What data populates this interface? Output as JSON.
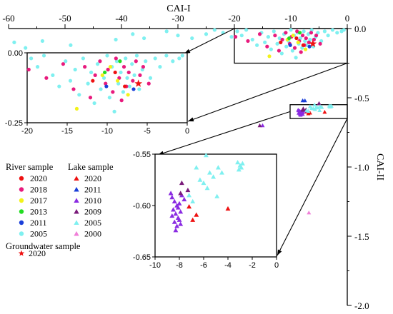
{
  "chart_data": {
    "type": "scatter",
    "main": {
      "xlabel": "CAI-I",
      "ylabel": "CAI-II",
      "xlim": [
        -60,
        0
      ],
      "ylim": [
        -2.0,
        0.0
      ],
      "xticks": [
        "-60",
        "-50",
        "-40",
        "-30",
        "-20",
        "-10",
        "0"
      ],
      "yticks": [
        "0.0",
        "-0.5",
        "-1.0",
        "-1.5",
        "-2.0"
      ]
    },
    "insets": [
      {
        "name": "river-zoom",
        "xlim": [
          -20,
          0
        ],
        "ylim": [
          -0.25,
          0.0
        ],
        "xticks": [
          "-20",
          "-15",
          "-10",
          "-5",
          "0"
        ],
        "yticks": [
          "0.00",
          "-0.25"
        ]
      },
      {
        "name": "lake-zoom",
        "xlim": [
          -10,
          0
        ],
        "ylim": [
          -0.65,
          -0.55
        ],
        "xticks": [
          "-10",
          "-8",
          "-6",
          "-4",
          "-2",
          "0"
        ],
        "yticks": [
          "-0.55",
          "-0.60",
          "-0.65"
        ]
      }
    ],
    "legend": {
      "river_title": "River sample",
      "lake_title": "Lake sample",
      "groundwater_title": "Groundwater sample",
      "river": [
        {
          "label": "2020",
          "color": "#ee1111"
        },
        {
          "label": "2018",
          "color": "#e81a7d"
        },
        {
          "label": "2017",
          "color": "#f2f21a"
        },
        {
          "label": "2013",
          "color": "#22dd22"
        },
        {
          "label": "2011",
          "color": "#1a3fd9"
        },
        {
          "label": "2005",
          "color": "#7ff0f0"
        }
      ],
      "lake": [
        {
          "label": "2020",
          "color": "#ee1111"
        },
        {
          "label": "2011",
          "color": "#1a3fd9"
        },
        {
          "label": "2010",
          "color": "#8a2be2"
        },
        {
          "label": "2009",
          "color": "#7a1a7a"
        },
        {
          "label": "2005",
          "color": "#7ff0f0"
        },
        {
          "label": "2000",
          "color": "#f07fd8"
        }
      ],
      "groundwater": [
        {
          "label": "2020",
          "color": "#ee1111"
        }
      ]
    },
    "series": [
      {
        "group": "river",
        "year": "2005",
        "marker": "circle",
        "color": "#7ff0f0",
        "points": [
          [
            -19.5,
            -0.02
          ],
          [
            -18.7,
            -0.05
          ],
          [
            -17.9,
            -0.01
          ],
          [
            -16.8,
            -0.08
          ],
          [
            -16.0,
            -0.12
          ],
          [
            -15.2,
            -0.03
          ],
          [
            -14.6,
            -0.1
          ],
          [
            -14.0,
            -0.06
          ],
          [
            -13.5,
            -0.15
          ],
          [
            -13.0,
            -0.02
          ],
          [
            -12.4,
            -0.11
          ],
          [
            -12.0,
            -0.07
          ],
          [
            -11.6,
            -0.18
          ],
          [
            -11.2,
            -0.04
          ],
          [
            -10.8,
            -0.13
          ],
          [
            -10.4,
            -0.09
          ],
          [
            -10.0,
            -0.01
          ],
          [
            -9.7,
            -0.16
          ],
          [
            -9.4,
            -0.05
          ],
          [
            -9.1,
            -0.21
          ],
          [
            -8.8,
            -0.03
          ],
          [
            -8.6,
            -0.11
          ],
          [
            -8.3,
            -0.07
          ],
          [
            -8.0,
            -0.14
          ],
          [
            -7.7,
            -0.02
          ],
          [
            -7.5,
            -0.09
          ],
          [
            -7.2,
            -0.12
          ],
          [
            -6.9,
            -0.04
          ],
          [
            -6.6,
            -0.08
          ],
          [
            -6.3,
            -0.01
          ],
          [
            -6.0,
            -0.13
          ],
          [
            -5.6,
            -0.06
          ],
          [
            -5.2,
            -0.03
          ],
          [
            -4.6,
            -0.09
          ],
          [
            -4.0,
            -0.02
          ],
          [
            -3.4,
            -0.05
          ],
          [
            -2.6,
            -0.01
          ],
          [
            -1.8,
            -0.03
          ],
          [
            -1.0,
            -0.02
          ],
          [
            -0.6,
            -0.01
          ],
          [
            -20.5,
            -0.06
          ],
          [
            -22.0,
            -0.03
          ],
          [
            -23.5,
            -0.01
          ],
          [
            -25.0,
            -0.04
          ],
          [
            -27.5,
            -0.07
          ],
          [
            -30.0,
            -0.05
          ],
          [
            -32.0,
            -0.02
          ],
          [
            -36.0,
            -0.07
          ],
          [
            -38.0,
            -0.04
          ],
          [
            -41.0,
            -0.08
          ],
          [
            -49.0,
            -0.12
          ],
          [
            -54.0,
            -0.09
          ],
          [
            -57.0,
            -0.14
          ],
          [
            -59.0,
            -0.1
          ]
        ]
      },
      {
        "group": "river",
        "year": "2018",
        "marker": "circle",
        "color": "#e81a7d",
        "points": [
          [
            -19.8,
            -0.06
          ],
          [
            -17.6,
            -0.09
          ],
          [
            -15.5,
            -0.04
          ],
          [
            -14.2,
            -0.13
          ],
          [
            -12.8,
            -0.05
          ],
          [
            -12.1,
            -0.16
          ],
          [
            -11.5,
            -0.08
          ],
          [
            -10.9,
            -0.03
          ],
          [
            -10.2,
            -0.11
          ],
          [
            -9.9,
            -0.06
          ],
          [
            -9.3,
            -0.14
          ],
          [
            -8.9,
            -0.02
          ],
          [
            -8.5,
            -0.09
          ],
          [
            -8.2,
            -0.17
          ],
          [
            -7.9,
            -0.05
          ],
          [
            -7.6,
            -0.12
          ],
          [
            -7.3,
            -0.07
          ],
          [
            -6.8,
            -0.1
          ],
          [
            -6.4,
            -0.03
          ],
          [
            -5.9,
            -0.08
          ],
          [
            -5.5,
            -0.05
          ],
          [
            -4.8,
            -0.11
          ]
        ]
      },
      {
        "group": "river",
        "year": "2020",
        "marker": "circle",
        "color": "#ee1111",
        "points": [
          [
            -11.8,
            -0.1
          ],
          [
            -9.0,
            -0.07
          ],
          [
            -7.8,
            -0.12
          ]
        ]
      },
      {
        "group": "river",
        "year": "2017",
        "marker": "circle",
        "color": "#f2f21a",
        "points": [
          [
            -13.8,
            -0.2
          ],
          [
            -10.6,
            -0.08
          ],
          [
            -9.6,
            -0.05
          ],
          [
            -8.7,
            -0.1
          ],
          [
            -7.4,
            -0.15
          ]
        ]
      },
      {
        "group": "river",
        "year": "2013",
        "marker": "circle",
        "color": "#22dd22",
        "points": [
          [
            -10.3,
            -0.07
          ],
          [
            -8.4,
            -0.03
          ]
        ]
      },
      {
        "group": "river",
        "year": "2011",
        "marker": "circle",
        "color": "#1a3fd9",
        "points": [
          [
            -10.1,
            -0.12
          ],
          [
            -6.7,
            -0.13
          ]
        ]
      },
      {
        "group": "groundwater",
        "year": "2020",
        "marker": "star",
        "color": "#ee1111",
        "points": [
          [
            -6.1,
            -0.11
          ]
        ]
      },
      {
        "group": "lake",
        "year": "2020",
        "marker": "triangle",
        "color": "#ee1111",
        "points": [
          [
            -6.6,
            -0.609
          ],
          [
            -6.9,
            -0.614
          ],
          [
            -7.2,
            -0.601
          ],
          [
            -4.0,
            -0.603
          ]
        ]
      },
      {
        "group": "lake",
        "year": "2011",
        "marker": "triangle",
        "color": "#1a3fd9",
        "points": [
          [
            -7.9,
            -0.52
          ],
          [
            -7.5,
            -0.52
          ]
        ]
      },
      {
        "group": "lake",
        "year": "2010",
        "marker": "triangle",
        "color": "#8a2be2",
        "points": [
          [
            -8.6,
            -0.592
          ],
          [
            -8.4,
            -0.596
          ],
          [
            -8.2,
            -0.6
          ],
          [
            -8.5,
            -0.604
          ],
          [
            -8.3,
            -0.608
          ],
          [
            -8.1,
            -0.612
          ],
          [
            -8.4,
            -0.616
          ],
          [
            -8.2,
            -0.62
          ],
          [
            -8.0,
            -0.598
          ],
          [
            -7.9,
            -0.606
          ],
          [
            -7.8,
            -0.59
          ],
          [
            -8.6,
            -0.61
          ],
          [
            -8.0,
            -0.614
          ],
          [
            -7.9,
            -0.618
          ],
          [
            -8.3,
            -0.624
          ],
          [
            -8.1,
            -0.602
          ],
          [
            -7.6,
            -0.594
          ],
          [
            -8.7,
            -0.588
          ],
          [
            -15.0,
            -0.7
          ]
        ]
      },
      {
        "group": "lake",
        "year": "2009",
        "marker": "triangle",
        "color": "#7a1a7a",
        "points": [
          [
            -7.8,
            -0.578
          ],
          [
            -7.9,
            -0.588
          ],
          [
            -7.3,
            -0.585
          ],
          [
            -5.0,
            -0.54
          ],
          [
            -15.5,
            -0.7
          ]
        ]
      },
      {
        "group": "lake",
        "year": "2005",
        "marker": "triangle",
        "color": "#7ff0f0",
        "points": [
          [
            -6.3,
            -0.575
          ],
          [
            -6.0,
            -0.578
          ],
          [
            -5.7,
            -0.583
          ],
          [
            -6.6,
            -0.563
          ],
          [
            -5.5,
            -0.568
          ],
          [
            -5.2,
            -0.572
          ],
          [
            -4.8,
            -0.563
          ],
          [
            -4.5,
            -0.568
          ],
          [
            -3.2,
            -0.558
          ],
          [
            -3.0,
            -0.561
          ],
          [
            -2.8,
            -0.559
          ],
          [
            -3.1,
            -0.565
          ],
          [
            -5.8,
            -0.551
          ],
          [
            -4.9,
            -0.591
          ],
          [
            -6.9,
            -0.596
          ],
          [
            -7.2,
            -0.59
          ],
          [
            -2.9,
            -0.563
          ]
        ]
      },
      {
        "group": "lake",
        "year": "2000",
        "marker": "triangle",
        "color": "#f07fd8",
        "points": [
          [
            -6.8,
            -1.33
          ]
        ]
      }
    ]
  }
}
